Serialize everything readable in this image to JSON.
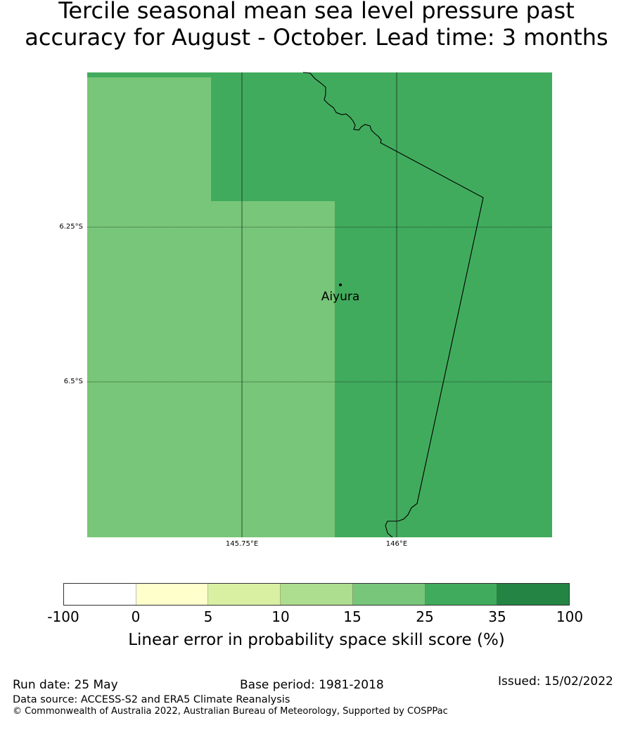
{
  "title": {
    "line1": "Tercile seasonal mean sea level pressure past",
    "line2": "accuracy for August - October. Lead time: 3 months"
  },
  "map": {
    "lat_ticks": [
      "6.25°S",
      "6.5°S"
    ],
    "lon_ticks": [
      "145.75°E",
      "146°E"
    ],
    "place": {
      "name": "Aiyura",
      "lat": -6.35,
      "lon": 145.905
    },
    "skill_score_region_category": {
      "west_panel": "15–25",
      "east_panel": "25–35"
    }
  },
  "colorbar": {
    "ticks": [
      "-100",
      "0",
      "5",
      "10",
      "15",
      "25",
      "35",
      "100"
    ],
    "colors": [
      "#ffffff",
      "#ffffcc",
      "#d9f0a3",
      "#addd8e",
      "#78c679",
      "#41ab5d",
      "#238443"
    ],
    "label": "Linear error in probability space skill score (%)"
  },
  "footer": {
    "run_date": "Run date: 25 May",
    "base_period": "Base period: 1981-2018",
    "issued": "Issued: 15/02/2022",
    "data_source": "Data source: ACCESS-S2 and ERA5 Climate Reanalysis",
    "copyright": "© Commonwealth of Australia 2022, Australian Bureau of Meteorology, Supported by COSPPac"
  }
}
